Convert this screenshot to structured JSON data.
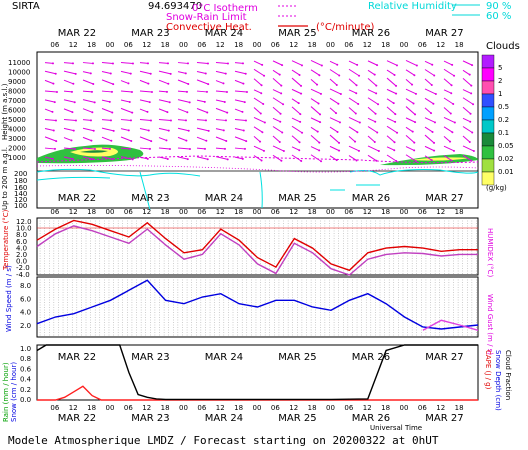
{
  "header": {
    "station": "SIRTA",
    "code": "94.693470",
    "legend_left": [
      "0°C Isotherm",
      "Snow-Rain Limit",
      "Convective Heat."
    ],
    "legend_unit": "(°C/minute)",
    "legend_right_label": "Relative Humidity",
    "legend_right_vals": [
      "90 %",
      "60 %"
    ]
  },
  "colorbar": {
    "title": "Clouds",
    "unit": "(g/kg)",
    "labels": [
      "5",
      "2",
      "1",
      "0.5",
      "0.2",
      "0.1",
      "0.05",
      "0.02",
      "0.01"
    ],
    "colors": [
      "#b21cff",
      "#ff00ff",
      "#ff4fb0",
      "#3050ff",
      "#00a0ff",
      "#00c8c8",
      "#1a8a3a",
      "#30c040",
      "#a0e040",
      "#ffff66"
    ]
  },
  "top_dates": [
    "MAR 22",
    "MAR 23",
    "MAR 24",
    "MAR 25",
    "MAR 26",
    "MAR 27"
  ],
  "hour_ticks": [
    "06",
    "12",
    "18",
    "00",
    "06",
    "12",
    "18",
    "00",
    "06",
    "12",
    "18",
    "00",
    "06",
    "12",
    "18",
    "00",
    "06",
    "12",
    "18",
    "00",
    "06",
    "12",
    "18"
  ],
  "panel_dates": [
    "MAR 22",
    "MAR 23",
    "MAR 24",
    "MAR 25",
    "MAR 26",
    "MAR 27"
  ],
  "axis_labels": {
    "height": "Height (m a.s.l.)",
    "height2": "Up to 200 m a.g.l.",
    "temperature": "Temperature (°C)",
    "humidex": "HUMIDEX (°C)",
    "wind_speed": "Wind Speed (m / s)",
    "wind_gust": "Wind Gust (m / s)",
    "rain": "Rain (mm / hour)",
    "snow": "Snow (cm / hour)",
    "cape": "CAPE (J / g)",
    "snow_depth": "Snow Depth (cm)",
    "cloud_fraction": "Cloud Fraction",
    "universal_time": "Universal Time"
  },
  "height_ticks": [
    "11000",
    "10000",
    "9000",
    "8000",
    "7000",
    "6000",
    "5000",
    "4000",
    "3000",
    "2000",
    "1000",
    "200",
    "180",
    "160",
    "140",
    "120",
    "100"
  ],
  "footer": "Modele Atmospherique LMDZ / Forecast starting on 20200322 at 0hUT",
  "chart_data": [
    {
      "type": "line",
      "title": "",
      "ylabel": "Temperature (°C)",
      "ylim": [
        -5,
        13
      ],
      "yticks": [
        "12.0",
        "10.0",
        "8.0",
        "6.0",
        "4.0",
        "2.0",
        "0.0",
        "-2.0",
        "-4.0"
      ],
      "x_hours": [
        0,
        6,
        12,
        18,
        24,
        30,
        36,
        42,
        48,
        54,
        60,
        66,
        72,
        78,
        84,
        90,
        96,
        102,
        108,
        114,
        120,
        126,
        132,
        138,
        144
      ],
      "series": [
        {
          "name": "Temperature",
          "color": "#e00000",
          "values": [
            6.0,
            9.5,
            12.2,
            11.0,
            9.0,
            7.0,
            11.5,
            6.5,
            2.0,
            3.0,
            9.5,
            6.0,
            0.5,
            -2.5,
            6.5,
            3.5,
            -1.5,
            -3.5,
            2.0,
            3.5,
            4.0,
            3.5,
            2.5,
            3.0,
            3.0
          ]
        },
        {
          "name": "Humidex",
          "color": "#c040c0",
          "values": [
            4.0,
            8.0,
            10.5,
            9.0,
            7.0,
            5.0,
            9.5,
            4.5,
            0.0,
            1.5,
            8.0,
            4.5,
            -1.5,
            -4.5,
            5.0,
            2.0,
            -3.0,
            -5.0,
            0.0,
            1.5,
            2.0,
            1.8,
            1.0,
            1.5,
            1.5
          ]
        }
      ]
    },
    {
      "type": "line",
      "title": "",
      "ylabel": "Wind Speed (m / s)",
      "ylim": [
        0,
        9
      ],
      "yticks": [
        "8.0",
        "6.0",
        "4.0",
        "2.0"
      ],
      "x_hours": [
        0,
        6,
        12,
        18,
        24,
        30,
        36,
        42,
        48,
        54,
        60,
        66,
        72,
        78,
        84,
        90,
        96,
        102,
        108,
        114,
        120,
        126,
        132,
        138,
        144
      ],
      "series": [
        {
          "name": "Wind Speed",
          "color": "#0000e0",
          "values": [
            2.0,
            3.0,
            3.5,
            4.5,
            5.5,
            7.0,
            8.5,
            5.5,
            5.0,
            6.0,
            6.5,
            5.0,
            4.5,
            5.5,
            5.5,
            4.5,
            4.0,
            5.5,
            6.5,
            5.0,
            3.0,
            1.5,
            1.2,
            1.5,
            1.8
          ]
        },
        {
          "name": "Wind Gust",
          "color": "#e040e0",
          "values": [
            null,
            null,
            null,
            null,
            null,
            null,
            null,
            null,
            null,
            null,
            null,
            null,
            null,
            null,
            null,
            null,
            null,
            null,
            null,
            null,
            null,
            1.0,
            2.5,
            1.8,
            1.0
          ]
        }
      ]
    },
    {
      "type": "line",
      "title": "",
      "ylabel": "Rain (mm / hour)",
      "ylim": [
        0,
        1
      ],
      "yticks": [
        "1.0",
        "0.8",
        "0.6",
        "0.4",
        "0.2",
        "0.0"
      ],
      "x_hours": [
        0,
        3,
        6,
        9,
        12,
        15,
        18,
        21,
        24,
        27,
        30,
        33,
        36,
        39,
        42,
        48,
        96,
        108,
        114,
        120,
        126,
        132,
        138,
        144
      ],
      "series": [
        {
          "name": "Rain",
          "color": "#ff2020",
          "values": [
            0,
            0,
            0,
            0.05,
            0.15,
            0.25,
            0.08,
            0,
            0,
            0,
            0,
            0,
            0,
            0,
            0,
            0,
            0,
            0,
            0,
            0,
            0,
            0,
            0,
            0
          ]
        },
        {
          "name": "Cloud Fraction",
          "color": "#000000",
          "values": [
            0.9,
            1.0,
            1.0,
            1.0,
            1.0,
            1.0,
            1.0,
            1.0,
            1.0,
            1.0,
            0.5,
            0.1,
            0.05,
            0.02,
            0.01,
            0.01,
            0.01,
            0.02,
            0.9,
            1.0,
            1.0,
            1.0,
            1.0,
            1.0
          ]
        }
      ]
    }
  ]
}
